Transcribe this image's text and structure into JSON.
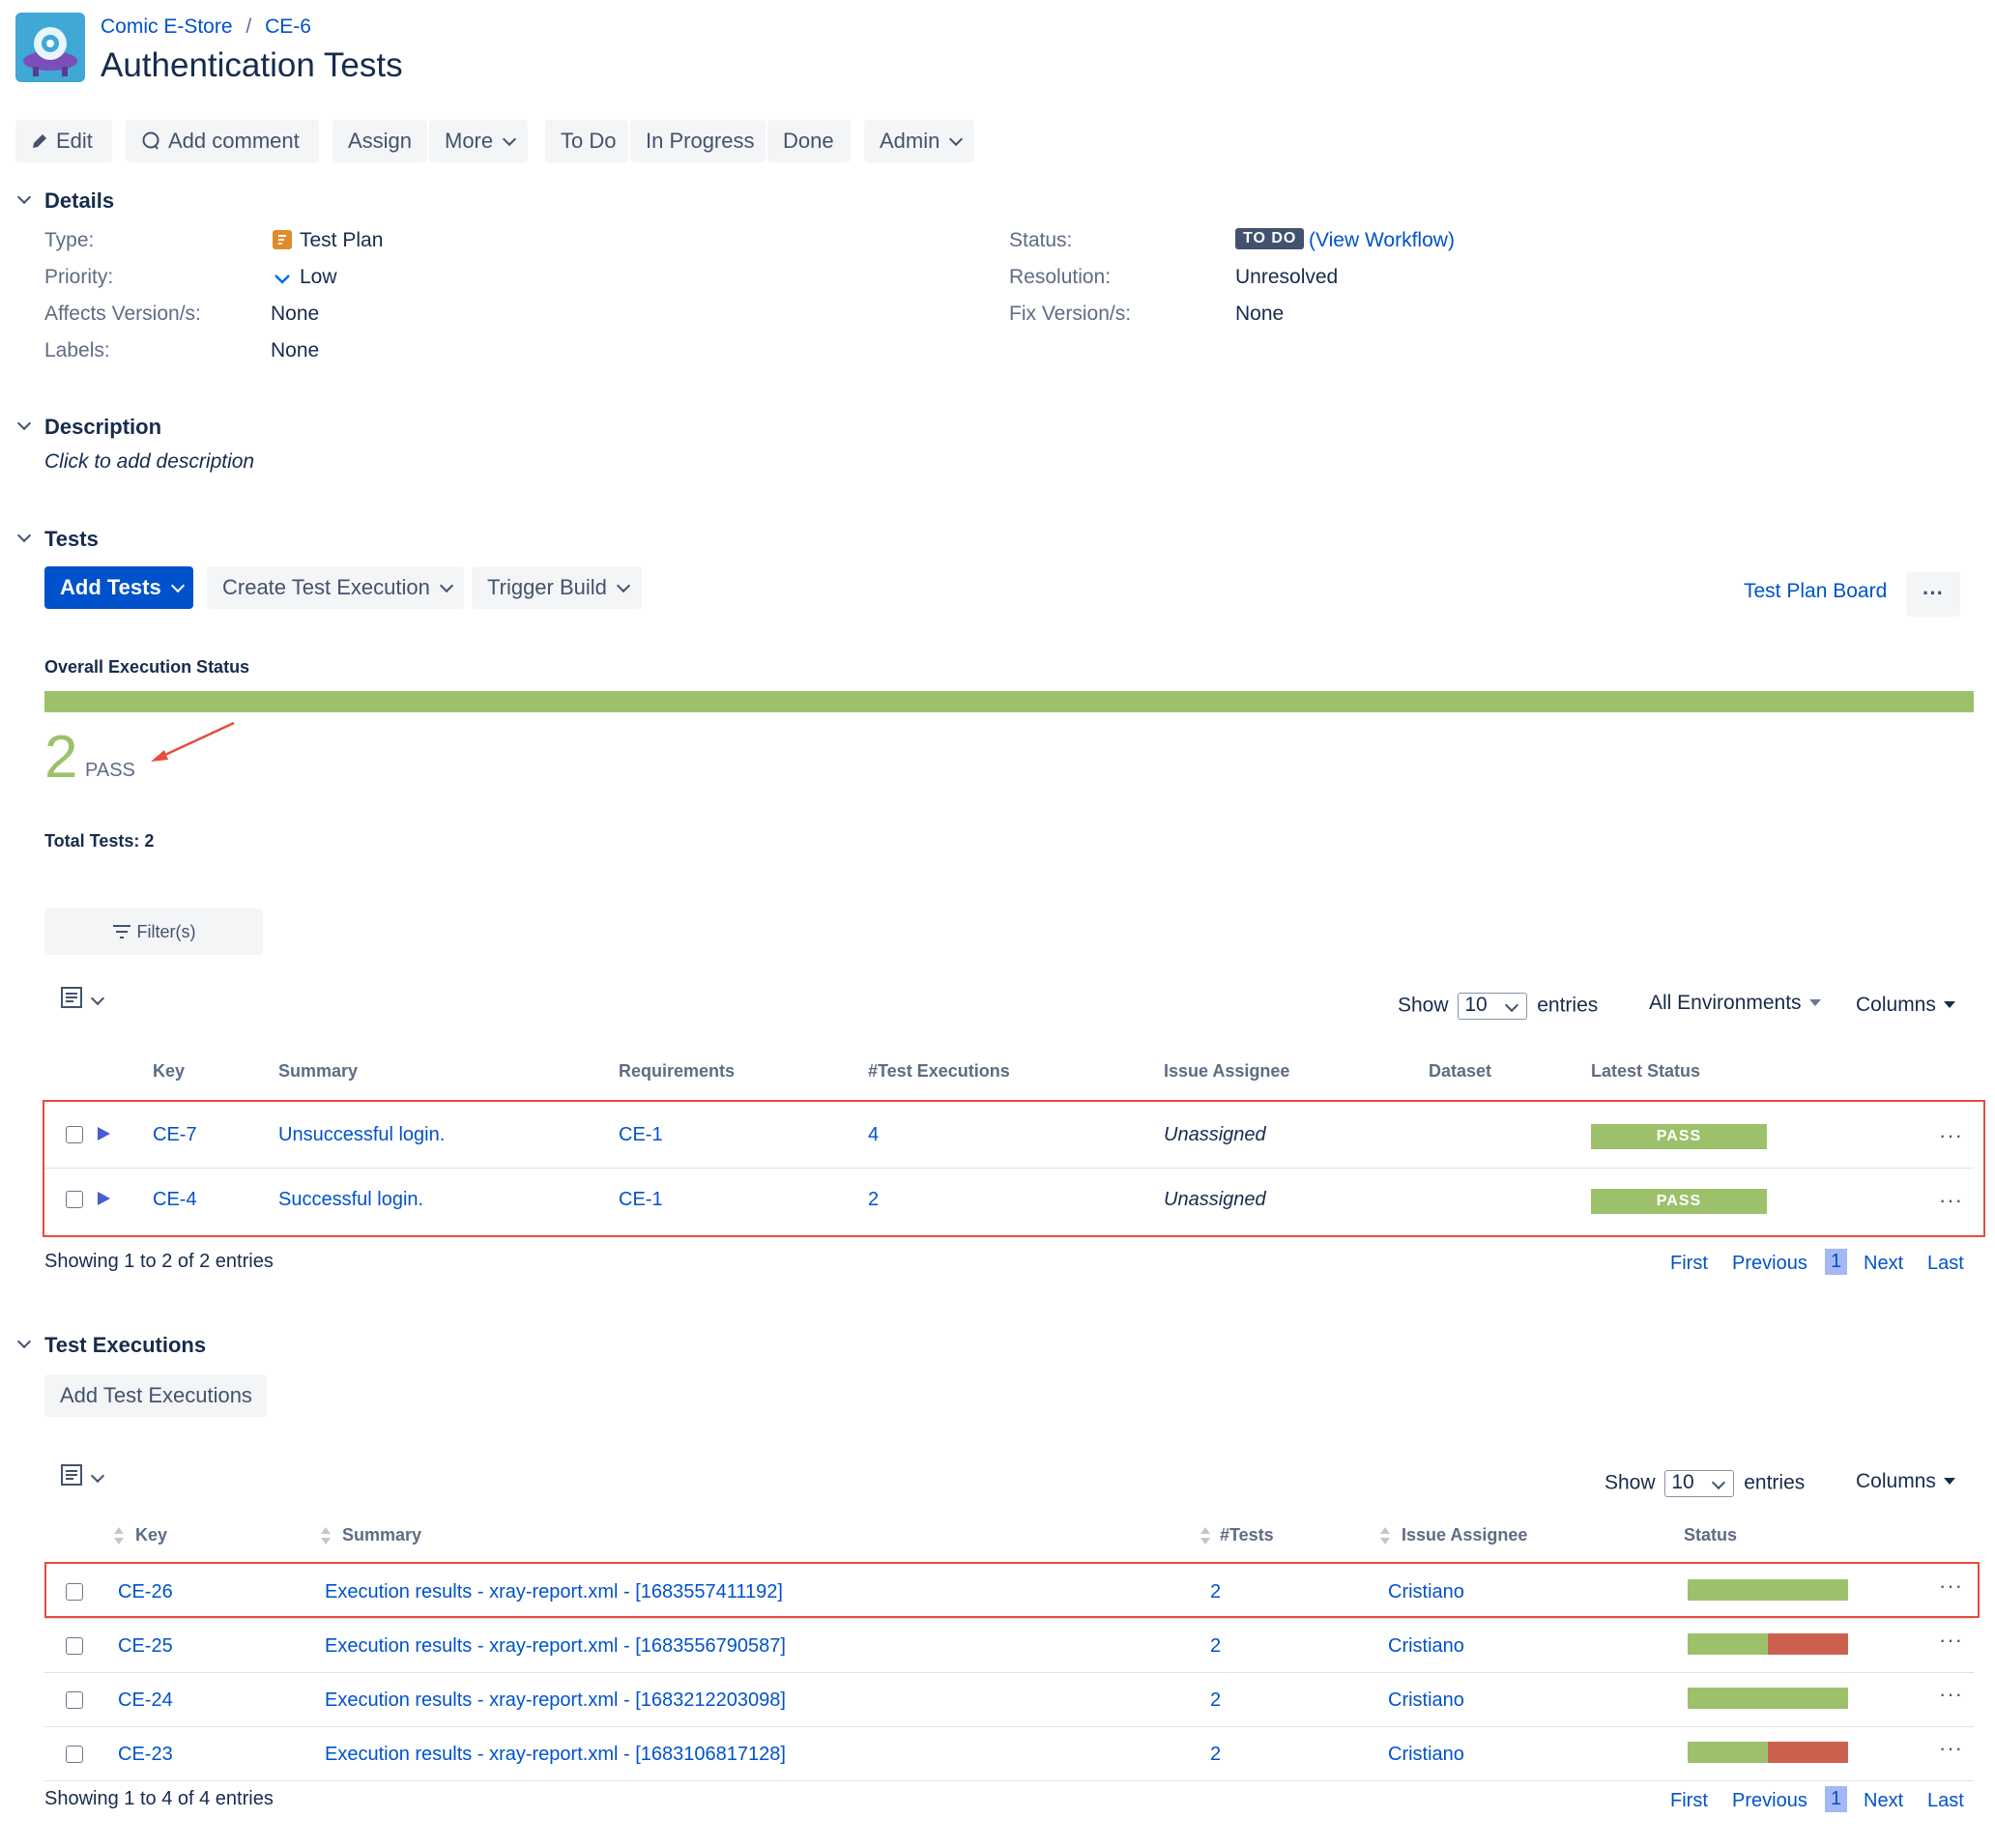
{
  "breadcrumb": {
    "project": "Comic E-Store",
    "sep": "/",
    "issue": "CE-6"
  },
  "page_title": "Authentication Tests",
  "toolbar": {
    "edit": "Edit",
    "add_comment": "Add comment",
    "assign": "Assign",
    "more": "More",
    "todo": "To Do",
    "in_progress": "In Progress",
    "done": "Done",
    "admin": "Admin"
  },
  "details": {
    "heading": "Details",
    "type_label": "Type:",
    "type_value": "Test Plan",
    "priority_label": "Priority:",
    "priority_value": "Low",
    "affects_label": "Affects Version/s:",
    "affects_value": "None",
    "labels_label": "Labels:",
    "labels_value": "None",
    "status_label": "Status:",
    "status_badge": "TO DO",
    "status_open": "(",
    "view_workflow": "View Workflow",
    "status_close": ")",
    "resolution_label": "Resolution:",
    "resolution_value": "Unresolved",
    "fix_label": "Fix Version/s:",
    "fix_value": "None"
  },
  "description": {
    "heading": "Description",
    "placeholder": "Click to add description"
  },
  "tests": {
    "heading": "Tests",
    "add_tests": "Add Tests",
    "create_exec": "Create Test Execution",
    "trigger_build": "Trigger Build",
    "board_link": "Test Plan Board",
    "more_dots": "···",
    "overall_label": "Overall Execution Status",
    "pass_count": "2",
    "pass_word": "PASS",
    "pass_fraction": 1.0,
    "total": "Total Tests: 2",
    "filter": "Filter(s)",
    "show": "Show",
    "show_value": "10",
    "entries": "entries",
    "environments": "All Environments",
    "columns": "Columns",
    "headers": {
      "key": "Key",
      "summary": "Summary",
      "requirements": "Requirements",
      "executions": "#Test Executions",
      "assignee": "Issue Assignee",
      "dataset": "Dataset",
      "latest": "Latest Status"
    },
    "rows": [
      {
        "key": "CE-7",
        "summary": "Unsuccessful login.",
        "req": "CE-1",
        "execs": "4",
        "assignee": "Unassigned",
        "status": "PASS"
      },
      {
        "key": "CE-4",
        "summary": "Successful login.",
        "req": "CE-1",
        "execs": "2",
        "assignee": "Unassigned",
        "status": "PASS"
      }
    ],
    "showing": "Showing 1 to 2 of 2 entries",
    "pager": {
      "first": "First",
      "previous": "Previous",
      "page": "1",
      "next": "Next",
      "last": "Last"
    }
  },
  "executions": {
    "heading": "Test Executions",
    "add_button": "Add Test Executions",
    "show": "Show",
    "show_value": "10",
    "entries": "entries",
    "columns": "Columns",
    "headers": {
      "key": "Key",
      "summary": "Summary",
      "tests": "#Tests",
      "assignee": "Issue Assignee",
      "status": "Status"
    },
    "rows": [
      {
        "key": "CE-26",
        "summary": "Execution results - xray-report.xml - [1683557411192]",
        "tests": "2",
        "assignee": "Cristiano",
        "pass_fraction": 1.0
      },
      {
        "key": "CE-25",
        "summary": "Execution results - xray-report.xml - [1683556790587]",
        "tests": "2",
        "assignee": "Cristiano",
        "pass_fraction": 0.5
      },
      {
        "key": "CE-24",
        "summary": "Execution results - xray-report.xml - [1683212203098]",
        "tests": "2",
        "assignee": "Cristiano",
        "pass_fraction": 1.0
      },
      {
        "key": "CE-23",
        "summary": "Execution results - xray-report.xml - [1683106817128]",
        "tests": "2",
        "assignee": "Cristiano",
        "pass_fraction": 0.5
      }
    ],
    "showing": "Showing 1 to 4 of 4 entries",
    "pager": {
      "first": "First",
      "previous": "Previous",
      "page": "1",
      "next": "Next",
      "last": "Last"
    }
  },
  "colors": {
    "pass": "#9dc16b",
    "fail": "#cc6150",
    "link": "#0052cc",
    "primary": "#0052cc",
    "annotation": "#e74c3c"
  }
}
